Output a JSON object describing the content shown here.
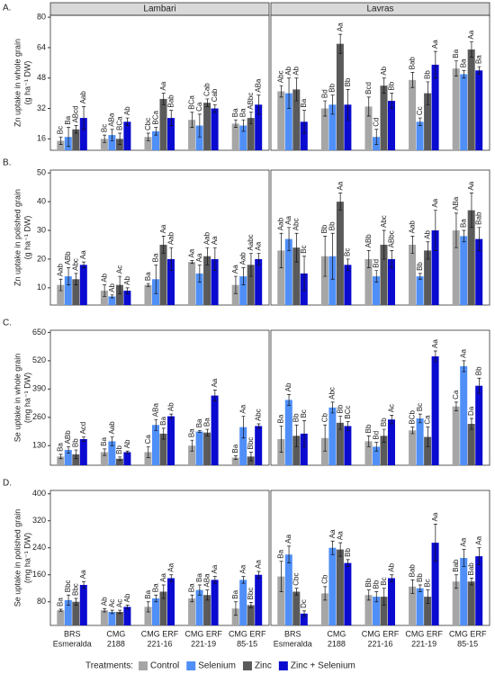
{
  "chart_data": {
    "type": "bar",
    "columns": [
      "Lambari",
      "Lavras"
    ],
    "categories": [
      [
        "BRS",
        "Esmeralda"
      ],
      [
        "CMG",
        "2188"
      ],
      [
        "CMG ERF",
        "221-16"
      ],
      [
        "CMG ERF",
        "221-19"
      ],
      [
        "CMG ERF",
        "85-15"
      ]
    ],
    "legend_title": "Treatments:",
    "series": [
      {
        "name": "Control",
        "color": "#a6a6a6"
      },
      {
        "name": "Selenium",
        "color": "#4f8ff7"
      },
      {
        "name": "Zinc",
        "color": "#5a5a5a"
      },
      {
        "name": "Zinc + Selenium",
        "color": "#0a0ad0"
      }
    ],
    "rows": [
      {
        "label": "A.",
        "ylabel": [
          "Zn uptake in whole grain",
          "(g ha⁻¹ DW)"
        ],
        "ylim": [
          10,
          81
        ],
        "yticks": [
          16,
          32,
          48,
          64,
          80
        ],
        "panels": [
          {
            "values": [
              [
                15,
                16,
                17,
                26,
                24
              ],
              [
                17,
                18,
                20,
                23,
                23
              ],
              [
                21,
                16,
                37,
                35,
                27
              ],
              [
                27,
                25,
                27,
                32,
                34
              ]
            ],
            "errors": [
              [
                2,
                2,
                2,
                4,
                2
              ],
              [
                5,
                3,
                2,
                6,
                3
              ],
              [
                2,
                3,
                3,
                2,
                3
              ],
              [
                6,
                2,
                4,
                2,
                5
              ]
            ],
            "value_labels": [
              [
                "Bc",
                "Bc",
                "Cbc",
                "BCa",
                "Ba"
              ],
              [
                "Ba",
                "ABa",
                "BCa",
                "Ca",
                "Ba"
              ],
              [
                "ABcd",
                "BCa",
                "Aa",
                "Cab",
                "ABbc"
              ],
              [
                "Aab",
                "Ab",
                "Bab",
                "Cab",
                "ABa"
              ]
            ]
          },
          {
            "values": [
              [
                41,
                32,
                33,
                47,
                53
              ],
              [
                40,
                34,
                17,
                25,
                50
              ],
              [
                42,
                66,
                44,
                40,
                63
              ],
              [
                25,
                34,
                36,
                55,
                52
              ]
            ],
            "errors": [
              [
                3,
                4,
                5,
                4,
                4
              ],
              [
                8,
                5,
                4,
                2,
                2
              ],
              [
                6,
                5,
                4,
                6,
                4
              ],
              [
                6,
                8,
                4,
                7,
                2
              ]
            ],
            "value_labels": [
              [
                "Abc",
                "Bd",
                "Bcd",
                "Bab",
                "Ba"
              ],
              [
                "Ab",
                "Bb",
                "Cd",
                "Cc",
                "Ba"
              ],
              [
                "Ab",
                "Aa",
                "Ab",
                "Bb",
                "Aa"
              ],
              [
                "Ba",
                "Bb",
                "Bb",
                "Aa",
                "Ba"
              ]
            ]
          }
        ]
      },
      {
        "label": "B.",
        "ylabel": [
          "Zn uptake in polished grain",
          "(g ha⁻¹ DW)"
        ],
        "ylim": [
          4,
          51
        ],
        "yticks": [
          10,
          20,
          30,
          40,
          50
        ],
        "panels": [
          {
            "values": [
              [
                11,
                9,
                11,
                19,
                11
              ],
              [
                14,
                7,
                13,
                15,
                14
              ],
              [
                13,
                11,
                25,
                21,
                18
              ],
              [
                18,
                9,
                20,
                20,
                20
              ]
            ],
            "errors": [
              [
                2,
                2,
                0.5,
                0.5,
                3
              ],
              [
                3,
                0.5,
                5,
                3,
                3
              ],
              [
                2,
                3,
                3,
                3,
                4
              ],
              [
                1,
                1,
                4,
                4,
                2
              ]
            ],
            "value_labels": [
              [
                "Aab",
                "Ab",
                "Ba",
                "Aa",
                "Aa"
              ],
              [
                "ABb",
                "Ab",
                "Ba",
                "Aa",
                "Aab"
              ],
              [
                "Abc",
                "Ac",
                "Aa",
                "Aab",
                "Aabc"
              ],
              [
                "Aa",
                "Ab",
                "Aab",
                "Aa",
                "Aa"
              ]
            ]
          },
          {
            "values": [
              [
                23,
                21,
                20,
                25,
                30
              ],
              [
                27,
                21,
                14,
                14,
                28
              ],
              [
                24,
                40,
                25,
                23,
                37
              ],
              [
                15,
                18,
                20,
                30,
                27
              ]
            ],
            "errors": [
              [
                6,
                7,
                3,
                3,
                6
              ],
              [
                4,
                8,
                2,
                1,
                2
              ],
              [
                5,
                3,
                5,
                3,
                6
              ],
              [
                6,
                2,
                3,
                7,
                4
              ]
            ],
            "value_labels": [
              [
                "Aab",
                "Bb",
                "ABb",
                "Aab",
                "ABa"
              ],
              [
                "Aa",
                "Bb",
                "Bd",
                "Bb",
                "Ba"
              ],
              [
                "Abc",
                "Aa",
                "Abc",
                "Ab",
                "Aa"
              ],
              [
                "Bc",
                "Bc",
                "ABbc",
                "Aa",
                "Bab"
              ]
            ]
          }
        ]
      },
      {
        "label": "C.",
        "ylabel": [
          "Se uptake in whole grain",
          "(mg ha⁻¹ DW)"
        ],
        "ylim": [
          40,
          660
        ],
        "yticks": [
          130,
          260,
          390,
          520,
          650
        ],
        "panels": [
          {
            "values": [
              [
                80,
                100,
                100,
                130,
                75
              ],
              [
                110,
                150,
                225,
                195,
                215
              ],
              [
                90,
                70,
                185,
                190,
                80
              ],
              [
                160,
                100,
                265,
                360,
                220
              ]
            ],
            "errors": [
              [
                10,
                15,
                25,
                25,
                8
              ],
              [
                15,
                20,
                25,
                5,
                50
              ],
              [
                20,
                8,
                25,
                15,
                20
              ],
              [
                10,
                5,
                10,
                25,
                10
              ]
            ],
            "value_labels": [
              [
                "Ba",
                "Ba",
                "Ca",
                "Ba",
                "Ba"
              ],
              [
                "ABb",
                "Aab",
                "ABa",
                "Ba",
                "Aa"
              ],
              [
                "Bb",
                "Bb",
                "Ba",
                "Ba",
                "Bbc"
              ],
              [
                "Acd",
                "Ab",
                "Ab",
                "Aa",
                "Abc"
              ]
            ]
          },
          {
            "values": [
              [
                160,
                165,
                150,
                200,
                310
              ],
              [
                340,
                305,
                125,
                255,
                495
              ],
              [
                175,
                235,
                175,
                170,
                230
              ],
              [
                185,
                220,
                250,
                540,
                405
              ]
            ],
            "errors": [
              [
                60,
                60,
                25,
                15,
                20
              ],
              [
                25,
                25,
                20,
                20,
                25
              ],
              [
                50,
                30,
                30,
                45,
                25
              ],
              [
                60,
                20,
                20,
                25,
                35
              ]
            ],
            "value_labels": [
              [
                "Ba",
                "Cb",
                "Bb",
                "BCb",
                "Ca"
              ],
              [
                "Ab",
                "Abc",
                "Bd",
                "Bc",
                "Aa"
              ],
              [
                "Bb",
                "Bb",
                "Bb",
                "Ca",
                "Da"
              ],
              [
                "Bc",
                "BCc",
                "Ac",
                "Aa",
                "Bb"
              ]
            ]
          }
        ]
      },
      {
        "label": "D.",
        "ylabel": [
          "Se uptake in polished grain",
          "(mg ha⁻¹ DW)"
        ],
        "ylim": [
          10,
          410
        ],
        "yticks": [
          80,
          160,
          240,
          320,
          400
        ],
        "panels": [
          {
            "values": [
              [
                55,
                55,
                65,
                90,
                60
              ],
              [
                85,
                50,
                90,
                115,
                145
              ],
              [
                80,
                50,
                110,
                100,
                70
              ],
              [
                130,
                65,
                150,
                145,
                160
              ]
            ],
            "errors": [
              [
                3,
                5,
                15,
                10,
                20
              ],
              [
                15,
                5,
                10,
                15,
                10
              ],
              [
                10,
                5,
                20,
                15,
                8
              ],
              [
                10,
                5,
                10,
                10,
                10
              ]
            ],
            "value_labels": [
              [
                "Ba",
                "Ab",
                "Ba",
                "Ba",
                "Ba"
              ],
              [
                "Bbc",
                "Ac",
                "Ba",
                "Ba",
                "Aa"
              ],
              [
                "Bbc",
                "Ac",
                "Aa",
                "ABa",
                "Bbc"
              ],
              [
                "Aa",
                "Ab",
                "Aa",
                "Aa",
                "Aa"
              ]
            ]
          },
          {
            "values": [
              [
                155,
                105,
                100,
                125,
                140
              ],
              [
                220,
                240,
                95,
                120,
                210
              ],
              [
                110,
                235,
                95,
                95,
                140
              ],
              [
                45,
                195,
                150,
                255,
                215
              ]
            ],
            "errors": [
              [
                45,
                20,
                15,
                20,
                20
              ],
              [
                25,
                20,
                15,
                10,
                25
              ],
              [
                10,
                20,
                25,
                20,
                10
              ],
              [
                8,
                10,
                10,
                55,
                25
              ]
            ],
            "value_labels": [
              [
                "Ba",
                "Cb",
                "Bb",
                "Bab",
                "Bab"
              ],
              [
                "Aa",
                "Aa",
                "Bb",
                "Bb",
                "Aa"
              ],
              [
                "Cbc",
                "Aa",
                "Bc",
                "Bc",
                "Bab"
              ],
              [
                "Dc",
                "Bb",
                "Ab",
                "Aa",
                "Aa"
              ]
            ]
          }
        ]
      }
    ]
  }
}
